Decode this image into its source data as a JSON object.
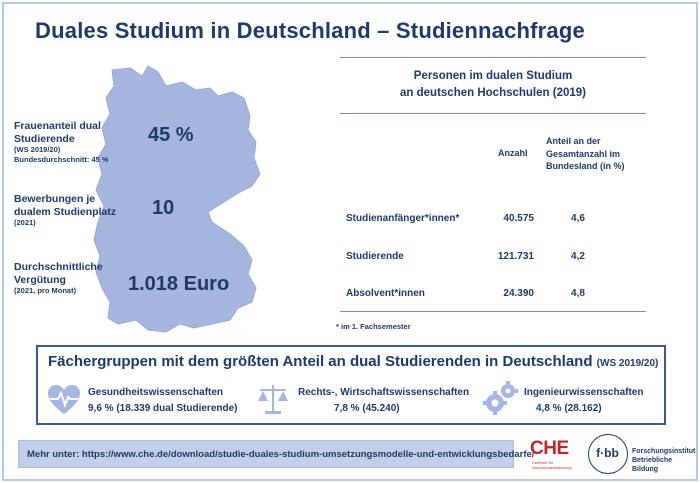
{
  "title": "Duales Studium in Deutschland – Studiennachfrage",
  "colors": {
    "primary": "#1f3a68",
    "map": "#a6b6de",
    "light_accent": "#c3cfe8",
    "che_red": "#c0262c"
  },
  "stats": [
    {
      "label_lines": [
        "Frauenanteil dual",
        "Studierende"
      ],
      "sub_lines": [
        "(WS 2019/20)",
        "Bundesdurchschnitt: 45 %"
      ],
      "value": "45 %"
    },
    {
      "label_lines": [
        "Bewerbungen je",
        "dualem Studienplatz"
      ],
      "sub_lines": [
        "(2021)"
      ],
      "value": "10"
    },
    {
      "label_lines": [
        "Durchschnittliche",
        "Vergütung"
      ],
      "sub_lines": [
        "(2021, pro Monat)"
      ],
      "value": "1.018 Euro"
    }
  ],
  "table": {
    "title_lines": [
      "Personen im dualen Studium",
      "an deutschen Hochschulen (2019)"
    ],
    "col_count_header": "Anzahl",
    "col_share_header_lines": [
      "Anteil an der",
      "Gesamtanzahl im",
      "Bundesland (in %)"
    ],
    "rows": [
      {
        "label": "Studienanfänger*innen*",
        "count": "40.575",
        "share": "4,6"
      },
      {
        "label": "Studierende",
        "count": "121.731",
        "share": "4,2"
      },
      {
        "label": "Absolvent*innen",
        "count": "24.390",
        "share": "4,8"
      }
    ],
    "footnote": "* im 1. Fachsemester"
  },
  "fields": {
    "title": "Fächergruppen mit dem größten Anteil an dual Studierenden in Deutschland",
    "title_suffix": "(WS 2019/20)",
    "items": [
      {
        "icon": "heart-pulse-icon",
        "name": "Gesundheitswissenschaften",
        "value": "9,6 % (18.339 dual Studierende)"
      },
      {
        "icon": "scales-icon",
        "name": "Rechts-, Wirtschaftswissenschaften",
        "value": "7,8 % (45.240)"
      },
      {
        "icon": "gears-icon",
        "name": "Ingenieurwissenschaften",
        "value": "4,8 % (28.162)"
      }
    ]
  },
  "more_info": "Mehr unter: https://www.che.de/download/studie-duales-studium-umsetzungsmodelle-und-entwicklungsbedarfe/",
  "logos": {
    "che": {
      "word": "CHE",
      "sub_lines": [
        "Centrum für",
        "Hochschulentwicklung"
      ]
    },
    "fbb": {
      "word": "f·bb",
      "text_lines": [
        "Forschungsinstitut",
        "Betriebliche Bildung"
      ]
    }
  }
}
